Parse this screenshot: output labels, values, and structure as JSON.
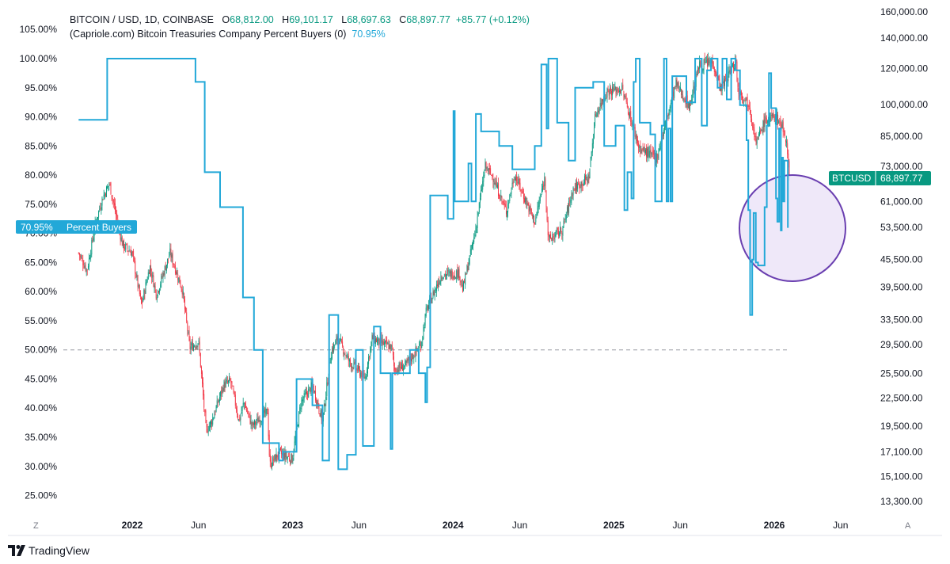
{
  "legend": {
    "symbol": "BITCOIN / USD, 1D, COINBASE",
    "o_label": "O",
    "o": "68,812.00",
    "h_label": "H",
    "h": "69,101.17",
    "l_label": "L",
    "l": "68,697.63",
    "c_label": "C",
    "c": "68,897.77",
    "change": "+85.77 (+0.12%)",
    "indicator": "(Capriole.com) Bitcoin Treasuries Company Percent Buyers (0)",
    "indicator_value": "70.95%"
  },
  "badges": {
    "btc_name": "BTCUSD",
    "btc_value": "68,897.77",
    "buyers_value": "70.95%",
    "buyers_name": "Percent Buyers"
  },
  "bottom_left_label": "Z",
  "bottom_right_label": "A",
  "brand": "TradingView",
  "colors": {
    "indicator": "#22a8d8",
    "up": "#089981",
    "down": "#f23645",
    "highlight_stroke": "#6a3fb0",
    "highlight_fill": "#ece4f8",
    "reference": "#9598a1"
  },
  "chart_data": {
    "type": "line",
    "x_axis": {
      "ticks": [
        "2022",
        "Jun",
        "2023",
        "Jun",
        "2024",
        "Jun",
        "2025",
        "Jun",
        "2026",
        "Jun"
      ],
      "bold_ticks": [
        "2022",
        "2023",
        "2024",
        "2025",
        "2026"
      ]
    },
    "left_axis": {
      "ticks": [
        "105.00%",
        "100.00%",
        "95.00%",
        "90.00%",
        "85.00%",
        "80.00%",
        "75.00%",
        "70.00%",
        "65.00%",
        "60.00%",
        "55.00%",
        "50.00%",
        "45.00%",
        "40.00%",
        "35.00%",
        "30.00%",
        "25.00%"
      ],
      "range": [
        22.5,
        107
      ]
    },
    "right_axis": {
      "scale": "log",
      "ticks": [
        "160,000.00",
        "140,000.00",
        "120,000.00",
        "100,000.00",
        "85,000.00",
        "73,000.00",
        "61,000.00",
        "53,500.00",
        "45,500.00",
        "39,500.00",
        "33,500.00",
        "29,500.00",
        "25,500.00",
        "22,500.00",
        "19,500.00",
        "17,100.00",
        "15,100.00",
        "13,300.00"
      ]
    },
    "reference_line": 50,
    "series": [
      {
        "name": "Percent Buyers",
        "axis": "left",
        "points": [
          [
            "2021-09-01",
            89.5
          ],
          [
            "2021-11-05",
            89.5
          ],
          [
            "2021-11-05",
            100
          ],
          [
            "2022-05-25",
            100
          ],
          [
            "2022-05-25",
            96
          ],
          [
            "2022-06-15",
            96
          ],
          [
            "2022-06-15",
            80.5
          ],
          [
            "2022-07-20",
            80.5
          ],
          [
            "2022-07-20",
            74.5
          ],
          [
            "2022-09-10",
            74.5
          ],
          [
            "2022-09-10",
            59
          ],
          [
            "2022-10-05",
            59
          ],
          [
            "2022-10-05",
            50
          ],
          [
            "2022-10-25",
            50
          ],
          [
            "2022-10-25",
            34
          ],
          [
            "2022-12-01",
            34
          ],
          [
            "2022-12-01",
            31
          ],
          [
            "2022-12-10",
            31
          ],
          [
            "2022-12-10",
            32.5
          ],
          [
            "2023-01-10",
            32.5
          ],
          [
            "2023-01-10",
            45
          ],
          [
            "2023-02-15",
            45
          ],
          [
            "2023-02-15",
            40.5
          ],
          [
            "2023-03-10",
            40.5
          ],
          [
            "2023-03-10",
            31
          ],
          [
            "2023-03-25",
            31
          ],
          [
            "2023-03-25",
            56
          ],
          [
            "2023-04-15",
            56
          ],
          [
            "2023-04-15",
            29.5
          ],
          [
            "2023-05-05",
            29.5
          ],
          [
            "2023-05-05",
            32
          ],
          [
            "2023-05-25",
            32
          ],
          [
            "2023-05-25",
            50
          ],
          [
            "2023-06-10",
            50
          ],
          [
            "2023-06-10",
            33.5
          ],
          [
            "2023-07-05",
            33.5
          ],
          [
            "2023-07-05",
            54
          ],
          [
            "2023-07-20",
            54
          ],
          [
            "2023-07-20",
            46
          ],
          [
            "2023-08-12",
            46
          ],
          [
            "2023-08-12",
            33
          ],
          [
            "2023-08-16",
            33
          ],
          [
            "2023-08-16",
            46
          ],
          [
            "2023-09-25",
            46
          ],
          [
            "2023-09-25",
            50
          ],
          [
            "2023-10-15",
            50
          ],
          [
            "2023-10-15",
            46
          ],
          [
            "2023-10-30",
            46
          ],
          [
            "2023-10-30",
            41
          ],
          [
            "2023-11-03",
            41
          ],
          [
            "2023-11-03",
            47
          ],
          [
            "2023-11-10",
            47
          ],
          [
            "2023-11-10",
            76.5
          ],
          [
            "2023-12-20",
            76.5
          ],
          [
            "2023-12-20",
            72.5
          ],
          [
            "2024-01-02",
            72.5
          ],
          [
            "2024-01-02",
            91
          ],
          [
            "2024-01-05",
            91
          ],
          [
            "2024-01-05",
            75.5
          ],
          [
            "2024-02-05",
            75.5
          ],
          [
            "2024-02-05",
            82
          ],
          [
            "2024-02-12",
            82
          ],
          [
            "2024-02-12",
            75.5
          ],
          [
            "2024-02-22",
            75.5
          ],
          [
            "2024-02-22",
            90.5
          ],
          [
            "2024-03-05",
            90.5
          ],
          [
            "2024-03-05",
            87.5
          ],
          [
            "2024-04-15",
            87.5
          ],
          [
            "2024-04-15",
            85
          ],
          [
            "2024-05-15",
            85
          ],
          [
            "2024-05-15",
            81
          ],
          [
            "2024-07-05",
            81
          ],
          [
            "2024-07-05",
            85
          ],
          [
            "2024-07-20",
            85
          ],
          [
            "2024-07-20",
            99
          ],
          [
            "2024-08-01",
            99
          ],
          [
            "2024-08-01",
            88
          ],
          [
            "2024-08-05",
            88
          ],
          [
            "2024-08-05",
            100
          ],
          [
            "2024-08-25",
            100
          ],
          [
            "2024-08-25",
            89
          ],
          [
            "2024-09-20",
            89
          ],
          [
            "2024-09-20",
            82.5
          ],
          [
            "2024-10-05",
            82.5
          ],
          [
            "2024-10-05",
            95
          ],
          [
            "2024-11-15",
            95
          ],
          [
            "2024-11-15",
            96
          ],
          [
            "2024-12-10",
            96
          ],
          [
            "2024-12-10",
            85
          ],
          [
            "2025-01-05",
            85
          ],
          [
            "2025-01-05",
            88.5
          ],
          [
            "2025-01-25",
            88.5
          ],
          [
            "2025-01-25",
            74
          ],
          [
            "2025-02-01",
            74
          ],
          [
            "2025-02-01",
            80.5
          ],
          [
            "2025-02-10",
            80.5
          ],
          [
            "2025-02-10",
            76
          ],
          [
            "2025-02-15",
            76
          ],
          [
            "2025-02-15",
            96
          ],
          [
            "2025-02-20",
            96
          ],
          [
            "2025-02-20",
            100
          ],
          [
            "2025-03-01",
            100
          ],
          [
            "2025-03-01",
            89
          ],
          [
            "2025-03-25",
            89
          ],
          [
            "2025-03-25",
            87
          ],
          [
            "2025-04-05",
            87
          ],
          [
            "2025-04-05",
            75.5
          ],
          [
            "2025-04-20",
            75.5
          ],
          [
            "2025-04-20",
            88.5
          ],
          [
            "2025-04-25",
            88.5
          ],
          [
            "2025-04-25",
            100
          ],
          [
            "2025-05-01",
            100
          ],
          [
            "2025-05-01",
            75.5
          ],
          [
            "2025-05-05",
            75.5
          ],
          [
            "2025-05-05",
            88
          ],
          [
            "2025-05-10",
            88
          ],
          [
            "2025-05-10",
            75.5
          ],
          [
            "2025-05-14",
            75.5
          ],
          [
            "2025-05-14",
            97
          ],
          [
            "2025-06-15",
            97
          ],
          [
            "2025-06-15",
            92.5
          ],
          [
            "2025-07-05",
            92.5
          ],
          [
            "2025-07-05",
            100
          ],
          [
            "2025-07-20",
            100
          ],
          [
            "2025-07-20",
            88.5
          ],
          [
            "2025-08-01",
            88.5
          ],
          [
            "2025-08-01",
            98
          ],
          [
            "2025-08-10",
            98
          ],
          [
            "2025-08-10",
            100
          ],
          [
            "2025-08-25",
            100
          ],
          [
            "2025-08-25",
            95
          ],
          [
            "2025-09-05",
            95
          ],
          [
            "2025-09-05",
            100
          ],
          [
            "2025-09-15",
            100
          ],
          [
            "2025-09-15",
            93
          ],
          [
            "2025-09-25",
            93
          ],
          [
            "2025-09-25",
            100
          ],
          [
            "2025-10-05",
            100
          ],
          [
            "2025-10-05",
            98
          ],
          [
            "2025-10-15",
            98
          ],
          [
            "2025-10-15",
            92
          ],
          [
            "2025-10-30",
            92
          ],
          [
            "2025-10-30",
            86
          ],
          [
            "2025-11-03",
            86
          ],
          [
            "2025-11-03",
            74
          ],
          [
            "2025-11-07",
            74
          ],
          [
            "2025-11-07",
            56
          ],
          [
            "2025-11-12",
            56
          ],
          [
            "2025-11-12",
            65.5
          ],
          [
            "2025-11-15",
            65.5
          ],
          [
            "2025-11-15",
            73.5
          ],
          [
            "2025-11-20",
            73.5
          ],
          [
            "2025-11-20",
            65
          ],
          [
            "2025-11-25",
            65
          ],
          [
            "2025-11-25",
            64.5
          ],
          [
            "2025-12-10",
            64.5
          ],
          [
            "2025-12-10",
            74.5
          ],
          [
            "2025-12-15",
            74.5
          ],
          [
            "2025-12-15",
            88.5
          ],
          [
            "2025-12-20",
            88.5
          ],
          [
            "2025-12-20",
            97.5
          ],
          [
            "2025-12-25",
            97.5
          ],
          [
            "2025-12-25",
            91.5
          ],
          [
            "2026-01-05",
            91.5
          ],
          [
            "2026-01-05",
            76
          ],
          [
            "2026-01-08",
            76
          ],
          [
            "2026-01-08",
            72
          ],
          [
            "2026-01-12",
            72
          ],
          [
            "2026-01-12",
            88
          ],
          [
            "2026-01-16",
            88
          ],
          [
            "2026-01-16",
            70.5
          ],
          [
            "2026-01-18",
            70.5
          ],
          [
            "2026-01-18",
            83
          ],
          [
            "2026-01-21",
            83
          ],
          [
            "2026-01-21",
            75.5
          ],
          [
            "2026-01-24",
            75.5
          ],
          [
            "2026-01-24",
            82.5
          ],
          [
            "2026-02-01",
            82.5
          ],
          [
            "2026-02-01",
            70.95
          ]
        ]
      },
      {
        "name": "BITCOIN / USD",
        "axis": "right",
        "style": "candles",
        "points": [
          [
            "2021-09-01",
            47000
          ],
          [
            "2021-09-20",
            43000
          ],
          [
            "2021-10-10",
            55000
          ],
          [
            "2021-10-25",
            62000
          ],
          [
            "2021-11-10",
            67000
          ],
          [
            "2021-11-25",
            57000
          ],
          [
            "2021-12-10",
            49000
          ],
          [
            "2022-01-01",
            47000
          ],
          [
            "2022-01-22",
            36000
          ],
          [
            "2022-02-10",
            44000
          ],
          [
            "2022-02-25",
            38000
          ],
          [
            "2022-03-28",
            47000
          ],
          [
            "2022-04-25",
            39000
          ],
          [
            "2022-05-12",
            29000
          ],
          [
            "2022-06-01",
            30000
          ],
          [
            "2022-06-18",
            19000
          ],
          [
            "2022-07-01",
            20000
          ],
          [
            "2022-07-28",
            24000
          ],
          [
            "2022-08-13",
            24500
          ],
          [
            "2022-09-01",
            20000
          ],
          [
            "2022-09-12",
            22000
          ],
          [
            "2022-10-01",
            19500
          ],
          [
            "2022-11-05",
            21000
          ],
          [
            "2022-11-10",
            16000
          ],
          [
            "2022-12-01",
            17000
          ],
          [
            "2022-12-31",
            16500
          ],
          [
            "2023-01-20",
            22000
          ],
          [
            "2023-02-15",
            24000
          ],
          [
            "2023-03-10",
            20000
          ],
          [
            "2023-03-30",
            28500
          ],
          [
            "2023-04-14",
            30500
          ],
          [
            "2023-05-10",
            27000
          ],
          [
            "2023-06-15",
            25000
          ],
          [
            "2023-07-01",
            30500
          ],
          [
            "2023-07-15",
            30000
          ],
          [
            "2023-08-15",
            29000
          ],
          [
            "2023-08-20",
            26000
          ],
          [
            "2023-09-15",
            26500
          ],
          [
            "2023-10-20",
            29500
          ],
          [
            "2023-11-01",
            35000
          ],
          [
            "2023-12-05",
            42000
          ],
          [
            "2024-01-15",
            42500
          ],
          [
            "2024-01-23",
            39000
          ],
          [
            "2024-02-20",
            52000
          ],
          [
            "2024-03-14",
            73000
          ],
          [
            "2024-04-01",
            69000
          ],
          [
            "2024-05-01",
            58000
          ],
          [
            "2024-05-20",
            70000
          ],
          [
            "2024-07-05",
            55000
          ],
          [
            "2024-07-28",
            69000
          ],
          [
            "2024-08-05",
            50000
          ],
          [
            "2024-09-06",
            53000
          ],
          [
            "2024-09-30",
            65000
          ],
          [
            "2024-11-05",
            69000
          ],
          [
            "2024-11-20",
            95000
          ],
          [
            "2024-12-17",
            107000
          ],
          [
            "2025-01-20",
            108000
          ],
          [
            "2025-02-28",
            80000
          ],
          [
            "2025-04-08",
            76000
          ],
          [
            "2025-05-22",
            111000
          ],
          [
            "2025-06-22",
            99000
          ],
          [
            "2025-07-14",
            122000
          ],
          [
            "2025-08-14",
            124000
          ],
          [
            "2025-09-01",
            108000
          ],
          [
            "2025-10-06",
            125000
          ],
          [
            "2025-10-10",
            108000
          ],
          [
            "2025-11-05",
            100000
          ],
          [
            "2025-11-21",
            82000
          ],
          [
            "2025-12-10",
            92000
          ],
          [
            "2026-01-05",
            94000
          ],
          [
            "2026-01-20",
            89000
          ],
          [
            "2026-01-28",
            84000
          ],
          [
            "2026-02-05",
            68897.77
          ]
        ]
      }
    ]
  }
}
